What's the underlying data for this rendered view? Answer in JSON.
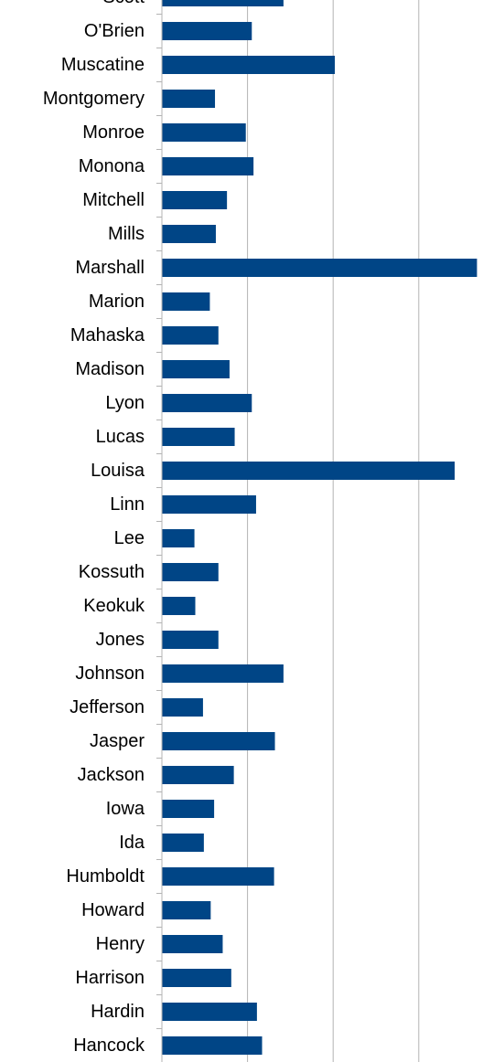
{
  "colors": {
    "bar": "#004586",
    "gridline": "#b3b3b3",
    "axis": "#b3b3b3",
    "label": "#000000",
    "background": "#ffffff"
  },
  "chart_data": {
    "type": "bar",
    "orientation": "horizontal",
    "grid": true,
    "x_gridlines_at": [
      1,
      2,
      3
    ],
    "xlim": [
      0,
      3.68
    ],
    "categories": [
      "Scott",
      "O'Brien",
      "Muscatine",
      "Montgomery",
      "Monroe",
      "Monona",
      "Mitchell",
      "Mills",
      "Marshall",
      "Marion",
      "Mahaska",
      "Madison",
      "Lyon",
      "Lucas",
      "Louisa",
      "Linn",
      "Lee",
      "Kossuth",
      "Keokuk",
      "Jones",
      "Johnson",
      "Jefferson",
      "Jasper",
      "Jackson",
      "Iowa",
      "Ida",
      "Humboldt",
      "Howard",
      "Henry",
      "Harrison",
      "Hardin",
      "Hancock"
    ],
    "values": [
      1.42,
      1.05,
      2.02,
      0.62,
      0.98,
      1.07,
      0.76,
      0.63,
      3.68,
      0.56,
      0.66,
      0.79,
      1.05,
      0.85,
      3.42,
      1.1,
      0.38,
      0.66,
      0.39,
      0.66,
      1.42,
      0.48,
      1.32,
      0.84,
      0.61,
      0.49,
      1.31,
      0.57,
      0.71,
      0.81,
      1.11,
      1.17
    ]
  }
}
